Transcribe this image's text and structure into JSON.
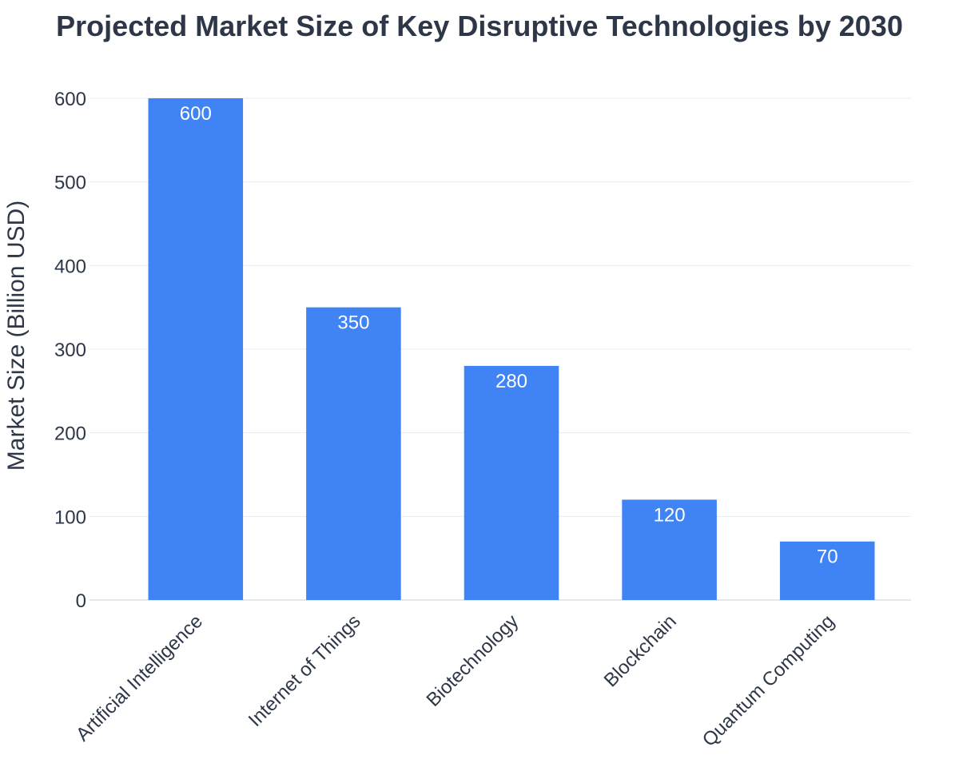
{
  "chart_data": {
    "type": "bar",
    "title": "Projected Market Size of Key Disruptive Technologies by 2030",
    "xlabel": "",
    "ylabel": "Market Size (Billion USD)",
    "categories": [
      "Artificial Intelligence",
      "Internet of Things",
      "Biotechnology",
      "Blockchain",
      "Quantum Computing"
    ],
    "values": [
      600,
      350,
      280,
      120,
      70
    ],
    "data_labels": [
      "600",
      "350",
      "280",
      "120",
      "70"
    ],
    "ylim": [
      0,
      600
    ],
    "yticks": [
      0,
      100,
      200,
      300,
      400,
      500,
      600
    ],
    "grid": true,
    "legend": "none",
    "bar_color": "#3f83f4",
    "label_color": "#ffffff",
    "text_color": "#2d3748"
  }
}
